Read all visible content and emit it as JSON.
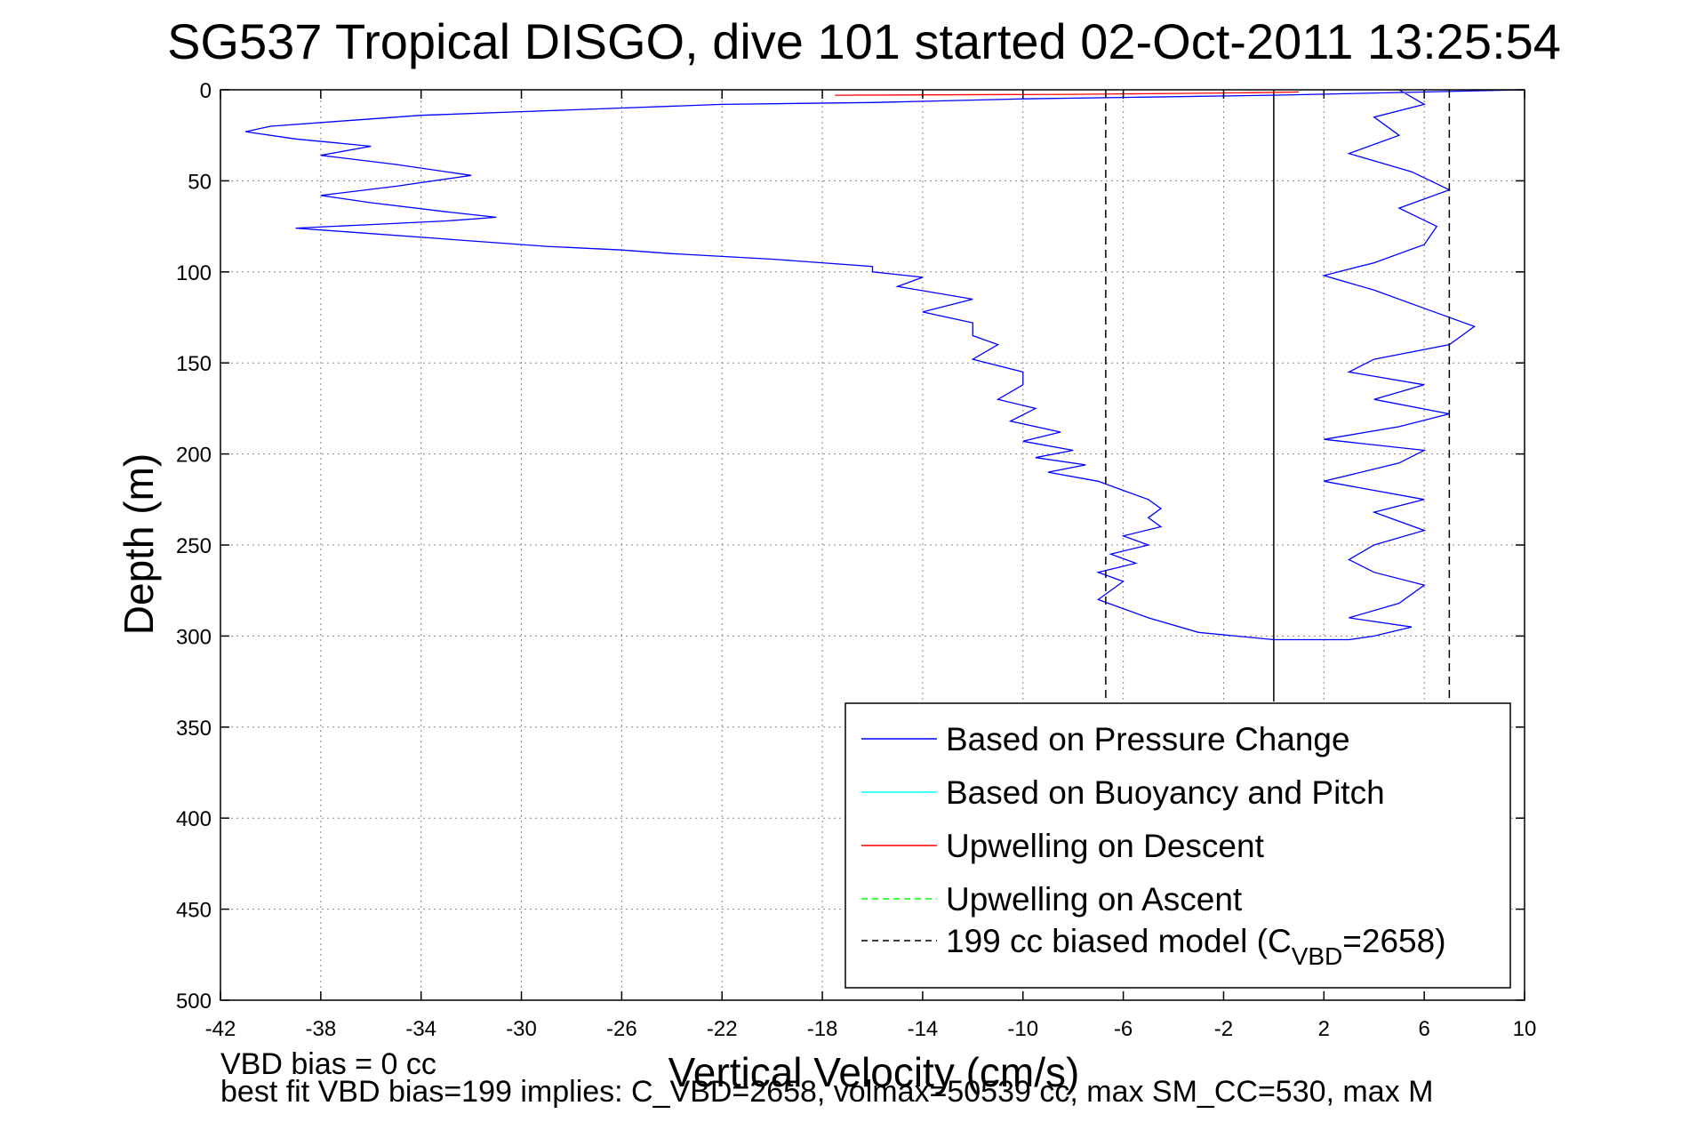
{
  "chart_data": {
    "type": "line",
    "title": "SG537 Tropical DISGO, dive 101 started 02-Oct-2011 13:25:54",
    "xlabel": "Vertical Velocity (cm/s)",
    "ylabel": "Depth (m)",
    "xlim": [
      -42,
      10
    ],
    "ylim": [
      0,
      500
    ],
    "y_reversed": true,
    "grid": true,
    "xticks": [
      -42,
      -38,
      -34,
      -30,
      -26,
      -22,
      -18,
      -14,
      -10,
      -6,
      -2,
      2,
      6,
      10
    ],
    "yticks": [
      0,
      50,
      100,
      150,
      200,
      250,
      300,
      350,
      400,
      450,
      500
    ],
    "xtick_labels": [
      "-42",
      "-38",
      "-34",
      "-30",
      "-26",
      "-22",
      "-18",
      "-14",
      "-10",
      "-6",
      "-2",
      "2",
      "6",
      "10"
    ],
    "ytick_labels": [
      "0",
      "50",
      "100",
      "150",
      "200",
      "250",
      "300",
      "350",
      "400",
      "450",
      "500"
    ],
    "legend_position": "bottom-right",
    "legend": [
      {
        "label": "Based on Pressure Change",
        "color": "#0000ff",
        "style": "solid"
      },
      {
        "label": "Based on Buoyancy and Pitch",
        "color": "#00ffff",
        "style": "solid"
      },
      {
        "label": "Upwelling on Descent",
        "color": "#ff0000",
        "style": "solid"
      },
      {
        "label": "Upwelling on Ascent",
        "color": "#00ff00",
        "style": "dashed"
      },
      {
        "label_prefix": "199 cc biased model (C",
        "label_sub": "VBD",
        "label_suffix": "=2658)",
        "color": "#000000",
        "style": "dashed"
      }
    ],
    "series": [
      {
        "name": "Based on Pressure Change",
        "color": "#0000ff",
        "x": [
          10,
          0,
          -5,
          -10,
          -16,
          -22,
          -26,
          -30,
          -34,
          -37,
          -40,
          -41,
          -39,
          -36,
          -38,
          -35,
          -32,
          -35,
          -38,
          -36,
          -33,
          -31,
          -33,
          -36,
          -39,
          -37,
          -33,
          -29,
          -26,
          -24,
          -20,
          -18,
          -16,
          -16,
          -14,
          -15,
          -12,
          -14,
          -12,
          -12,
          -11,
          -12,
          -10,
          -10,
          -11,
          -9.5,
          -10.5,
          -8.5,
          -10,
          -8,
          -9.5,
          -7.5,
          -9,
          -7,
          -6,
          -5,
          -4.5,
          -5,
          -4.5,
          -6,
          -5,
          -6.5,
          -5.5,
          -7,
          -6,
          -7,
          -5,
          -3,
          0,
          3,
          4,
          5.5,
          3,
          5,
          6,
          4,
          3,
          4,
          6,
          4,
          6,
          2,
          5,
          6,
          2,
          5,
          7,
          4,
          6,
          3,
          4,
          7,
          8,
          6,
          4,
          2,
          4,
          6,
          6.5,
          5,
          7,
          5.5,
          3,
          5,
          4,
          6,
          5
        ],
        "y": [
          0,
          3,
          4,
          5,
          7,
          8,
          10,
          12,
          14,
          17,
          20,
          23,
          27,
          31,
          36,
          41,
          47,
          53,
          58,
          62,
          67,
          70,
          72,
          74,
          76,
          78,
          82,
          86,
          88,
          90,
          93,
          95,
          97,
          100,
          103,
          108,
          115,
          122,
          128,
          135,
          140,
          148,
          155,
          162,
          170,
          175,
          182,
          188,
          193,
          198,
          202,
          206,
          210,
          215,
          220,
          225,
          230,
          235,
          240,
          245,
          250,
          255,
          260,
          265,
          270,
          280,
          290,
          298,
          302,
          302,
          300,
          295,
          290,
          282,
          272,
          265,
          258,
          250,
          242,
          232,
          225,
          215,
          205,
          198,
          192,
          185,
          178,
          170,
          162,
          155,
          148,
          140,
          130,
          120,
          110,
          102,
          95,
          85,
          75,
          65,
          55,
          45,
          35,
          25,
          15,
          8,
          0
        ]
      },
      {
        "name": "Upwelling on Descent",
        "color": "#ff0000",
        "x": [
          -17.5,
          -8,
          -4,
          -1,
          1
        ],
        "y": [
          3,
          2.5,
          2,
          1.6,
          1.2
        ]
      },
      {
        "name": "199 cc biased model (CVBD=2658)",
        "color": "#000000",
        "style": "dashed",
        "x_lines": [
          -6.7,
          7
        ],
        "y_range": [
          0,
          336
        ]
      }
    ],
    "reference_lines": [
      {
        "x": 0,
        "y_range": [
          0,
          336
        ],
        "color": "#000000",
        "style": "solid"
      }
    ]
  },
  "footer": {
    "line1": "VBD bias = 0 cc",
    "line2": "best fit VBD bias=199 implies: C_VBD=2658, volmax=50539 cc, max SM_CC=530, max M"
  }
}
